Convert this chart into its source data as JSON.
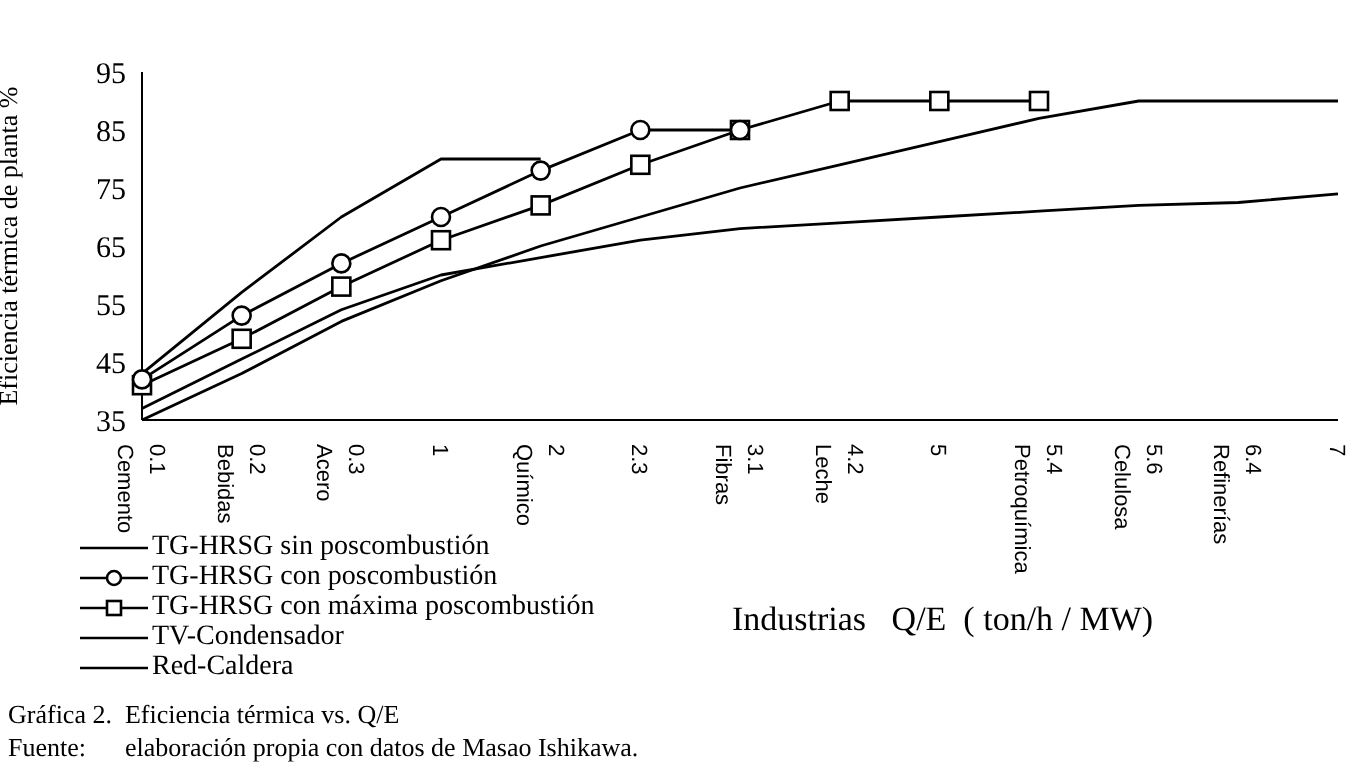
{
  "chart_data": {
    "type": "line",
    "title": "Gráfica 2.  Eficiencia térmica $^{}$vs. Q/E",
    "xlabel": "Industrias   Q/E  ( ton/h / MW)",
    "ylabel": "Eficiencia térmica de planta  %",
    "categories": [
      "Cemento\n0.1",
      "Bebidas\n0.2",
      "Acero\n0.3",
      "1",
      "Químico\n2",
      "2.3",
      "Fibras\n3.1",
      "Leche\n4.2",
      "5",
      "Petroquímica\n5.4",
      "Celulosa\n5.6",
      "Refinerías\n6.4",
      "7"
    ],
    "ylim": [
      35,
      95
    ],
    "yticks": [
      35,
      45,
      55,
      65,
      75,
      85,
      95
    ],
    "grid": false,
    "legend": "bottom left",
    "line_style": "solid",
    "series": [
      {
        "name": "TG-HRSG sin poscombustión",
        "color": "#000000",
        "marker": "none",
        "values": [
          43,
          57,
          70,
          80,
          80,
          null,
          null,
          null,
          null,
          null,
          null,
          null,
          null
        ]
      },
      {
        "name": "TG-HRSG con poscombustión",
        "color": "#000000",
        "marker": "circle",
        "values": [
          42,
          53,
          62,
          70,
          78,
          85,
          85,
          null,
          null,
          null,
          null,
          null,
          null
        ]
      },
      {
        "name": "TG-HRSG con máxima poscombustión",
        "color": "#000000",
        "marker": "square",
        "values": [
          41,
          49,
          58,
          66,
          72,
          79,
          85,
          90,
          90,
          90,
          null,
          null,
          null
        ]
      },
      {
        "name": "TV-Condensador",
        "color": "#000000",
        "marker": "none",
        "values": [
          35,
          43,
          52,
          59,
          65,
          70,
          75,
          79,
          83,
          87,
          90,
          90,
          90
        ]
      },
      {
        "name": "Red-Caldera",
        "color": "#000000",
        "marker": "none",
        "values": [
          37,
          45.5,
          54,
          60,
          63,
          66,
          68,
          69,
          70,
          71,
          72,
          72.5,
          74
        ]
      }
    ],
    "annotations": [
      "Fuente:      elaboración propia con datos de Masao Ishikawa."
    ]
  }
}
